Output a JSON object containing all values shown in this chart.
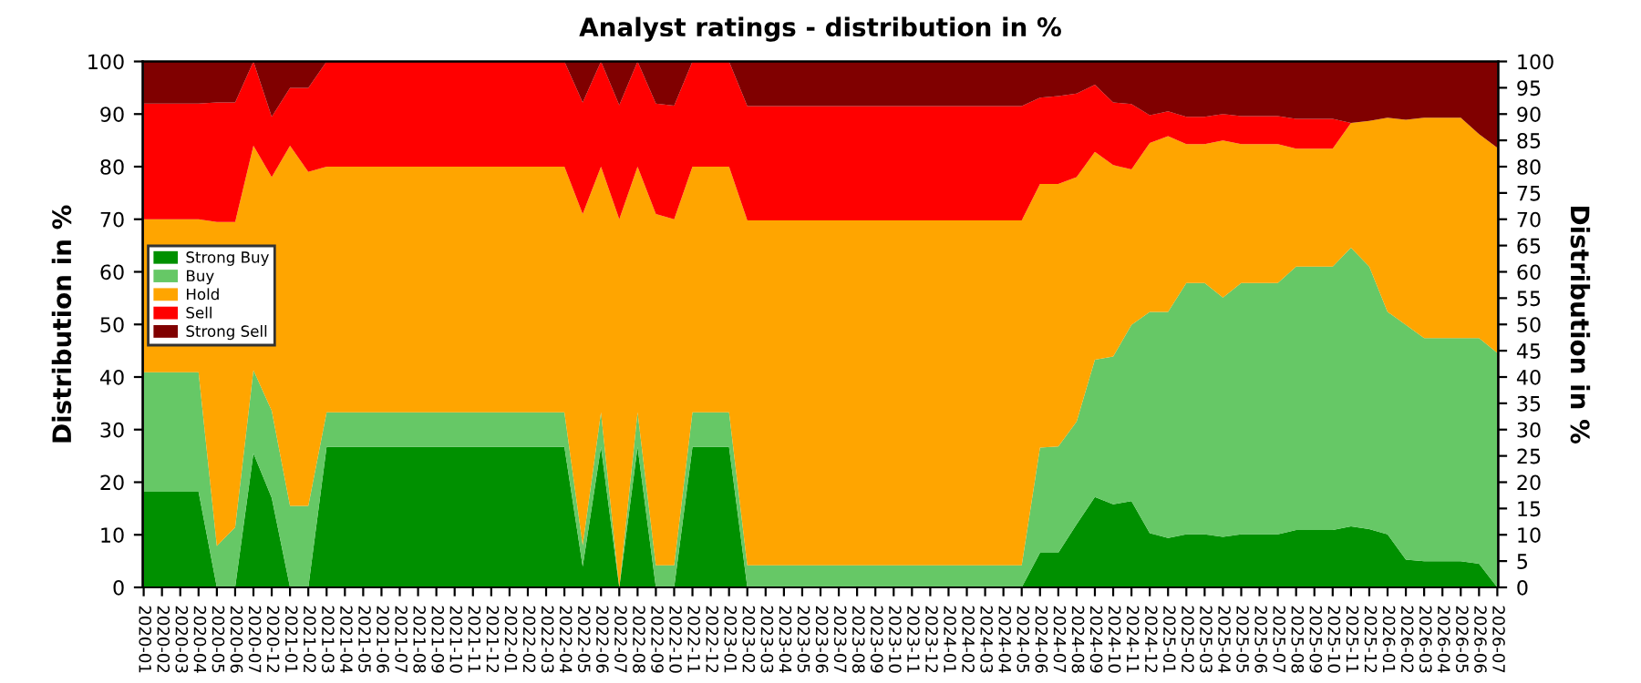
{
  "chart_data": {
    "type": "area",
    "stacked": true,
    "title": "Analyst ratings - distribution in %",
    "ylabel": "Distribution in %",
    "y2label": "Distribution in %",
    "categories": [
      "2020-01",
      "2020-02",
      "2020-03",
      "2020-04",
      "2020-05",
      "2020-06",
      "2020-07",
      "2020-12",
      "2021-01",
      "2021-02",
      "2021-03",
      "2021-04",
      "2021-05",
      "2021-06",
      "2021-07",
      "2021-08",
      "2021-09",
      "2021-10",
      "2021-11",
      "2021-12",
      "2022-01",
      "2022-02",
      "2022-03",
      "2022-04",
      "2022-05",
      "2022-06",
      "2022-07",
      "2022-08",
      "2022-09",
      "2022-10",
      "2022-11",
      "2022-12",
      "2023-01",
      "2023-02",
      "2023-03",
      "2023-04",
      "2023-05",
      "2023-06",
      "2023-07",
      "2023-08",
      "2023-09",
      "2023-10",
      "2023-11",
      "2023-12",
      "2024-01",
      "2024-02",
      "2024-03",
      "2024-04",
      "2024-05",
      "2024-06",
      "2024-07",
      "2024-08",
      "2024-09",
      "2024-10",
      "2024-11",
      "2024-12",
      "2025-01",
      "2025-02",
      "2025-03",
      "2025-04",
      "2025-05",
      "2025-06",
      "2025-07",
      "2025-08",
      "2025-09",
      "2025-10",
      "2025-11",
      "2025-12",
      "2026-01",
      "2026-02",
      "2026-03",
      "2026-04",
      "2026-05",
      "2026-06",
      "2026-07"
    ],
    "series": [
      {
        "name": "Strong Buy",
        "color": "#009000",
        "values": [
          18.2,
          18.2,
          18.2,
          18.2,
          0,
          0,
          25.5,
          17,
          0,
          0,
          26.7,
          26.7,
          26.7,
          26.7,
          26.7,
          26.7,
          26.7,
          26.7,
          26.7,
          26.7,
          26.7,
          26.7,
          26.7,
          26.7,
          4,
          26.7,
          0,
          26.7,
          0,
          0,
          26.7,
          26.7,
          26.7,
          0,
          0,
          0,
          0,
          0,
          0,
          0,
          0,
          0,
          0,
          0,
          0,
          0,
          0,
          0,
          0,
          6.6,
          6.6,
          12,
          17.2,
          15.8,
          16.4,
          10.3,
          9.4,
          10.1,
          10.1,
          9.6,
          10.1,
          10.1,
          10.1,
          10.9,
          10.9,
          10.9,
          11.6,
          11.1,
          10.1,
          5.3,
          5,
          5,
          5,
          4.5,
          0
        ]
      },
      {
        "name": "Buy",
        "color": "#66c866",
        "values": [
          22.7,
          22.7,
          22.7,
          22.7,
          7.9,
          11.4,
          15.8,
          16.6,
          15.5,
          15.5,
          6.6,
          6.6,
          6.6,
          6.6,
          6.6,
          6.6,
          6.6,
          6.6,
          6.6,
          6.6,
          6.6,
          6.6,
          6.6,
          6.6,
          4,
          6.6,
          0,
          6.6,
          4.2,
          4.2,
          6.6,
          6.6,
          6.6,
          4.2,
          4.2,
          4.2,
          4.2,
          4.2,
          4.2,
          4.2,
          4.2,
          4.2,
          4.2,
          4.2,
          4.2,
          4.2,
          4.2,
          4.2,
          4.2,
          20,
          20.2,
          19.5,
          26.1,
          28.1,
          33.5,
          42.1,
          43,
          47.8,
          47.8,
          45.5,
          47.8,
          47.8,
          47.8,
          50.1,
          50.1,
          50.1,
          53,
          49.9,
          42.3,
          44.6,
          42.4,
          42.4,
          42.4,
          42.9,
          44.6
        ]
      },
      {
        "name": "Hold",
        "color": "#ffa500",
        "values": [
          29.1,
          29.1,
          29.1,
          29.1,
          61.6,
          58.1,
          42.7,
          44.4,
          68.5,
          63.5,
          46.7,
          46.7,
          46.7,
          46.7,
          46.7,
          46.7,
          46.7,
          46.7,
          46.7,
          46.7,
          46.7,
          46.7,
          46.7,
          46.7,
          63,
          46.7,
          70,
          46.7,
          66.8,
          65.8,
          46.7,
          46.7,
          46.7,
          65.6,
          65.6,
          65.6,
          65.6,
          65.6,
          65.6,
          65.6,
          65.6,
          65.6,
          65.6,
          65.6,
          65.6,
          65.6,
          65.6,
          65.6,
          65.6,
          50.1,
          49.9,
          46.5,
          39.5,
          36.4,
          29.6,
          32.1,
          33.4,
          26.4,
          26.4,
          29.9,
          26.4,
          26.4,
          26.4,
          22.4,
          22.4,
          22.4,
          23.7,
          27.7,
          36.9,
          39,
          41.9,
          41.9,
          41.9,
          38.8,
          39
        ]
      },
      {
        "name": "Sell",
        "color": "#ff0000",
        "values": [
          22,
          22,
          22,
          22,
          22.7,
          22.7,
          16,
          11.5,
          11,
          16,
          20,
          20,
          20,
          20,
          20,
          20,
          20,
          20,
          20,
          20,
          20,
          20,
          20,
          20,
          21.2,
          20,
          21.7,
          20,
          21,
          21.6,
          20,
          20,
          20,
          21.7,
          21.7,
          21.7,
          21.7,
          21.7,
          21.7,
          21.7,
          21.7,
          21.7,
          21.7,
          21.7,
          21.7,
          21.7,
          21.7,
          21.7,
          21.7,
          16.4,
          16.7,
          15.9,
          12.8,
          11.9,
          12.4,
          5.3,
          4.7,
          5.2,
          5.2,
          5,
          5.3,
          5.3,
          5.3,
          5.7,
          5.7,
          5.7,
          0,
          0,
          0,
          0,
          0,
          0,
          0,
          0,
          0
        ]
      },
      {
        "name": "Strong Sell",
        "color": "#800000",
        "values": [
          8,
          8,
          8,
          8,
          7.8,
          7.8,
          0,
          10.5,
          5,
          5,
          0,
          0,
          0,
          0,
          0,
          0,
          0,
          0,
          0,
          0,
          0,
          0,
          0,
          0,
          7.8,
          0,
          8.3,
          0,
          8,
          8.4,
          0,
          0,
          0,
          8.5,
          8.5,
          8.5,
          8.5,
          8.5,
          8.5,
          8.5,
          8.5,
          8.5,
          8.5,
          8.5,
          8.5,
          8.5,
          8.5,
          8.5,
          8.5,
          6.9,
          6.6,
          6.1,
          4.4,
          7.8,
          8.1,
          10.2,
          9.5,
          10.5,
          10.5,
          10,
          10.4,
          10.4,
          10.4,
          10.9,
          10.9,
          10.9,
          11.7,
          11.3,
          10.7,
          11.1,
          10.7,
          10.7,
          10.7,
          13.8,
          16.4
        ]
      }
    ],
    "ylim": [
      0,
      100
    ],
    "yticks": [
      0,
      10,
      20,
      30,
      40,
      50,
      60,
      70,
      80,
      90,
      100
    ],
    "y2lim": [
      0,
      100
    ],
    "y2ticks": [
      0,
      5,
      10,
      15,
      20,
      25,
      30,
      35,
      40,
      45,
      50,
      55,
      60,
      65,
      70,
      75,
      80,
      85,
      90,
      95,
      100
    ],
    "grid": "y",
    "legend": "left"
  }
}
